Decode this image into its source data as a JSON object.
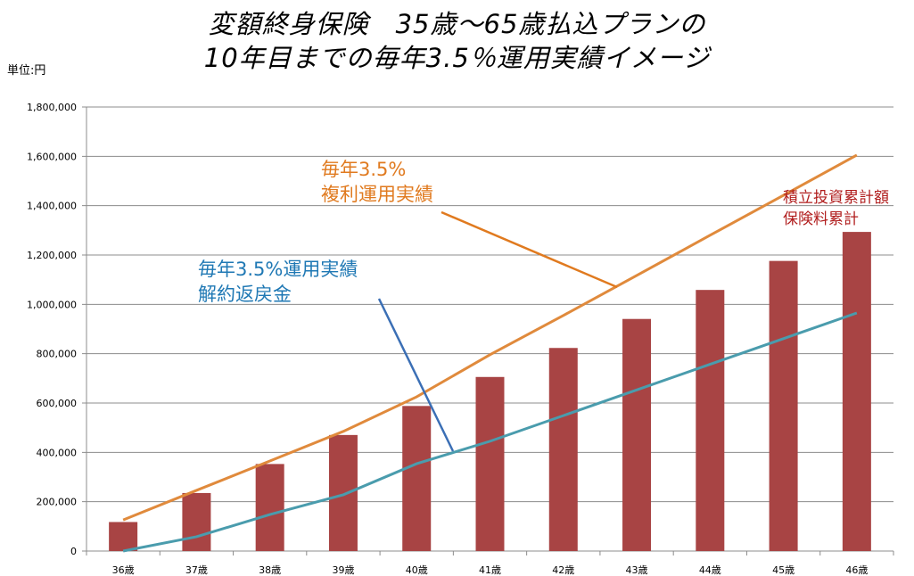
{
  "chart_data": {
    "type": "bar",
    "title_lines": [
      "変額終身保険　35歳～65歳払込プランの",
      "10年目までの毎年3.5％運用実績イメージ"
    ],
    "unit_label": "単位:円",
    "categories": [
      "36歳",
      "37歳",
      "38歳",
      "39歳",
      "40歳",
      "41歳",
      "42歳",
      "43歳",
      "44歳",
      "45歳",
      "46歳"
    ],
    "ylim": [
      0,
      1800000
    ],
    "yticks": [
      0,
      200000,
      400000,
      600000,
      800000,
      1000000,
      1200000,
      1400000,
      1600000,
      1800000
    ],
    "ytick_labels": [
      "0",
      "200,000",
      "400,000",
      "600,000",
      "800,000",
      "1,000,000",
      "1,200,000",
      "1,400,000",
      "1,600,000",
      "1,800,000"
    ],
    "grid": true,
    "series": [
      {
        "name": "積立投資累計額\n保険料累計",
        "type": "bar",
        "color": "#a84444",
        "values": [
          117600,
          235200,
          352800,
          470400,
          588000,
          705600,
          823200,
          940800,
          1058400,
          1176000,
          1293600
        ]
      },
      {
        "name": "毎年3.5%\n複利運用実績",
        "type": "line",
        "color": "#e08a3c",
        "values": [
          126000,
          246000,
          365000,
          485000,
          625000,
          796000,
          955000,
          1117000,
          1280000,
          1442000,
          1605000
        ]
      },
      {
        "name": "毎年3.5%運用実績\n解約返戻金",
        "type": "line",
        "color": "#4a9cad",
        "values": [
          0,
          58000,
          148000,
          228000,
          354000,
          445000,
          549000,
          653000,
          757000,
          861000,
          965000
        ]
      }
    ],
    "annotation_colors": {
      "compound": "#e07a1f",
      "surrender": "#1f78b4",
      "premium": "#b01c1c"
    }
  }
}
